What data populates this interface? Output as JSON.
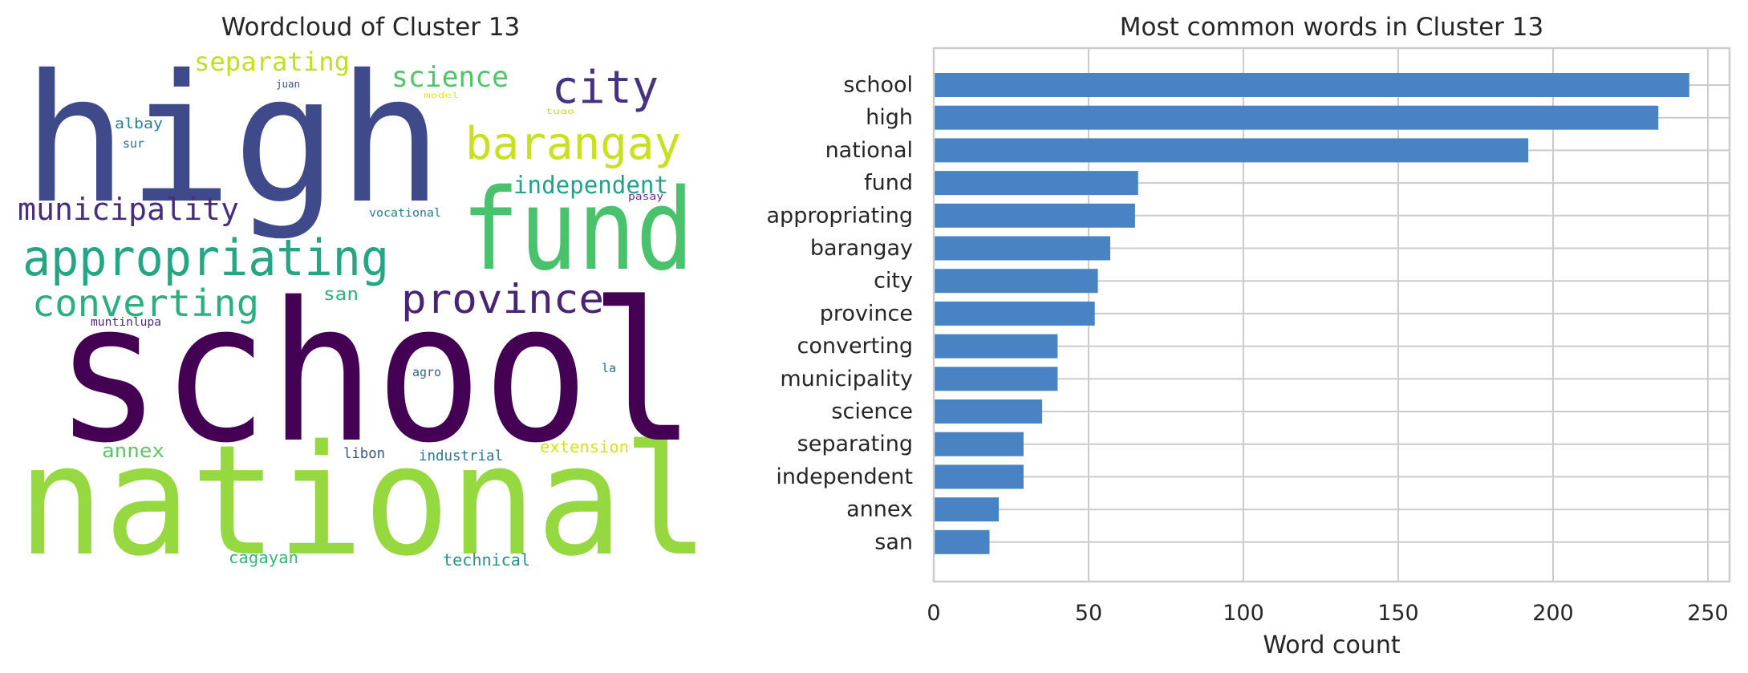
{
  "wordcloud": {
    "title": "Wordcloud of Cluster 13",
    "words": [
      {
        "text": "national",
        "color": "#95d840"
      },
      {
        "text": "school",
        "color": "#440154"
      },
      {
        "text": "high",
        "color": "#3e4a89"
      },
      {
        "text": "fund",
        "color": "#4ac16d"
      },
      {
        "text": "appropriating",
        "color": "#25a584"
      },
      {
        "text": "barangay",
        "color": "#c8e020"
      },
      {
        "text": "city",
        "color": "#46327e"
      },
      {
        "text": "province",
        "color": "#482475"
      },
      {
        "text": "converting",
        "color": "#2ab07f"
      },
      {
        "text": "municipality",
        "color": "#472d7b"
      },
      {
        "text": "science",
        "color": "#52c569"
      },
      {
        "text": "separating",
        "color": "#c2df23"
      },
      {
        "text": "independent",
        "color": "#20a386"
      },
      {
        "text": "annex",
        "color": "#5cc863"
      },
      {
        "text": "san",
        "color": "#2db27d"
      },
      {
        "text": "extension",
        "color": "#d8e219"
      },
      {
        "text": "cagayan",
        "color": "#35b779"
      },
      {
        "text": "technical",
        "color": "#21918c"
      },
      {
        "text": "industrial",
        "color": "#2a788e"
      },
      {
        "text": "libon",
        "color": "#3b528b"
      },
      {
        "text": "agro",
        "color": "#33638d"
      },
      {
        "text": "la",
        "color": "#31688e"
      },
      {
        "text": "muntinlupa",
        "color": "#472c7a"
      },
      {
        "text": "albay",
        "color": "#26828e"
      },
      {
        "text": "sur",
        "color": "#2c728e"
      },
      {
        "text": "vocational",
        "color": "#287d8e"
      },
      {
        "text": "pasay",
        "color": "#6a2c8e"
      },
      {
        "text": "juan",
        "color": "#3b528b"
      },
      {
        "text": "model",
        "color": "#e7e419"
      },
      {
        "text": "tuao",
        "color": "#c8e020"
      }
    ]
  },
  "chart_data": {
    "type": "bar",
    "orientation": "horizontal",
    "title": "Most common words in Cluster 13",
    "xlabel": "Word count",
    "ylabel": "",
    "categories": [
      "school",
      "high",
      "national",
      "fund",
      "appropriating",
      "barangay",
      "city",
      "province",
      "converting",
      "municipality",
      "science",
      "separating",
      "independent",
      "annex",
      "san"
    ],
    "values": [
      244,
      234,
      192,
      66,
      65,
      57,
      53,
      52,
      40,
      40,
      35,
      29,
      29,
      21,
      18
    ],
    "xlim": [
      0,
      257
    ],
    "xticks": [
      0,
      50,
      100,
      150,
      200,
      250
    ],
    "grid": true,
    "bar_color": "#4a83c4",
    "grid_color": "#cccccc"
  }
}
